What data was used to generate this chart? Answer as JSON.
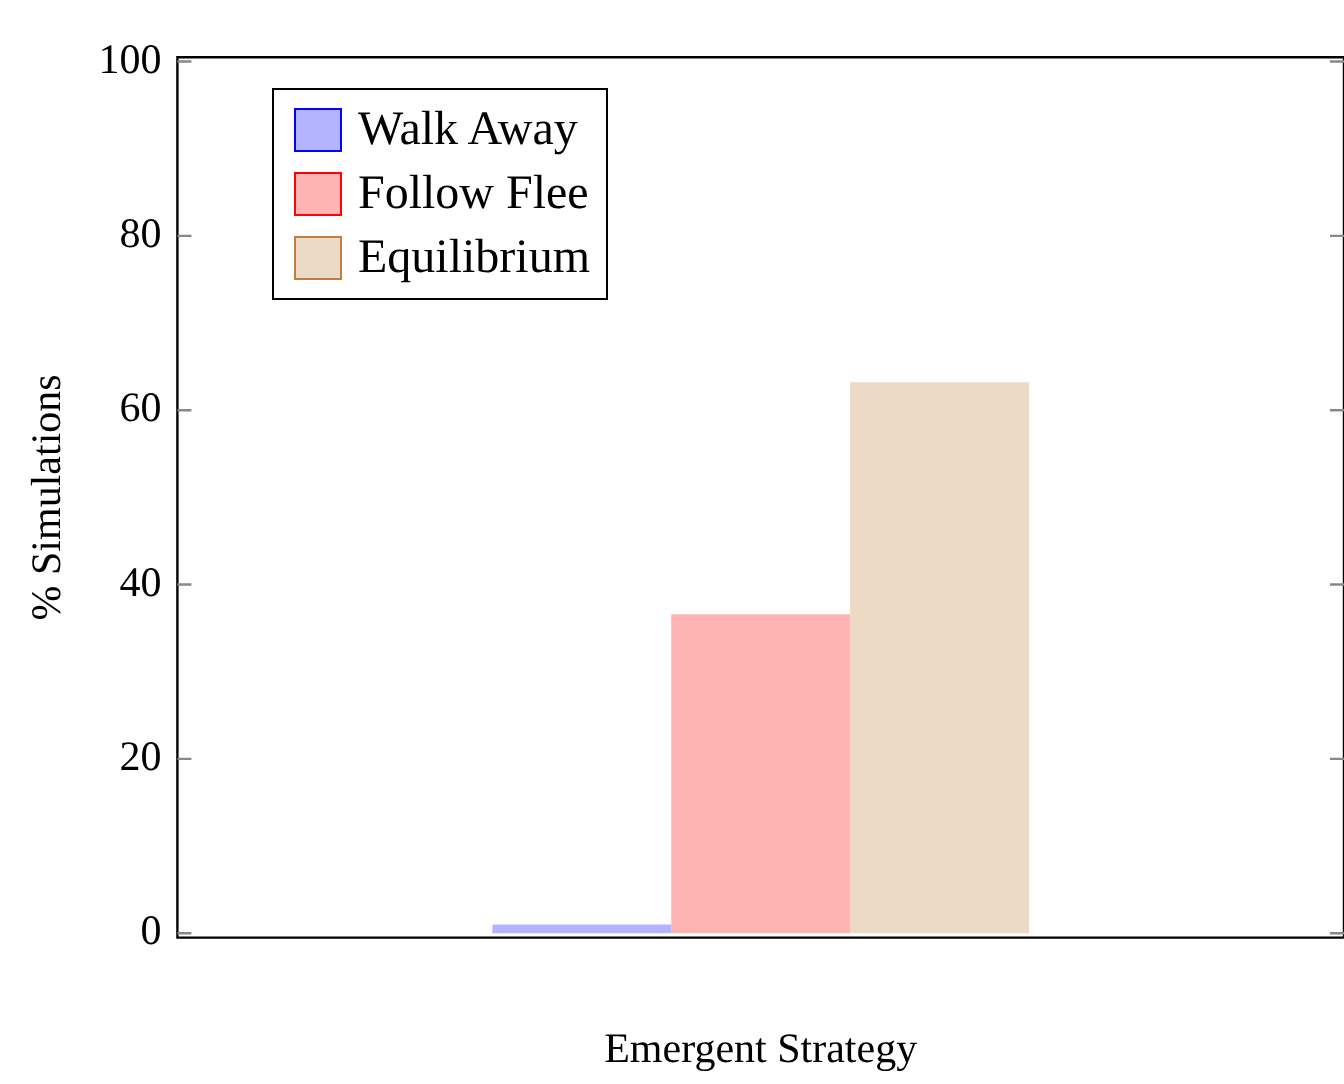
{
  "chart_data": {
    "type": "bar",
    "xlabel": "Emergent Strategy",
    "ylabel": "% Simulations",
    "categories": [
      null
    ],
    "series": [
      {
        "name": "Walk Away",
        "color": "#b3b3ff",
        "values": [
          1
        ]
      },
      {
        "name": "Follow Flee",
        "color": "#ffb3b3",
        "values": [
          36.6
        ]
      },
      {
        "name": "Equilibrium",
        "color": "#ecd9c6",
        "values": [
          63.2
        ]
      }
    ],
    "ylim": [
      -0.5,
      100.5
    ],
    "yticks": [
      0,
      20,
      40,
      60,
      80,
      100
    ],
    "grid": false,
    "legend": "top left"
  }
}
